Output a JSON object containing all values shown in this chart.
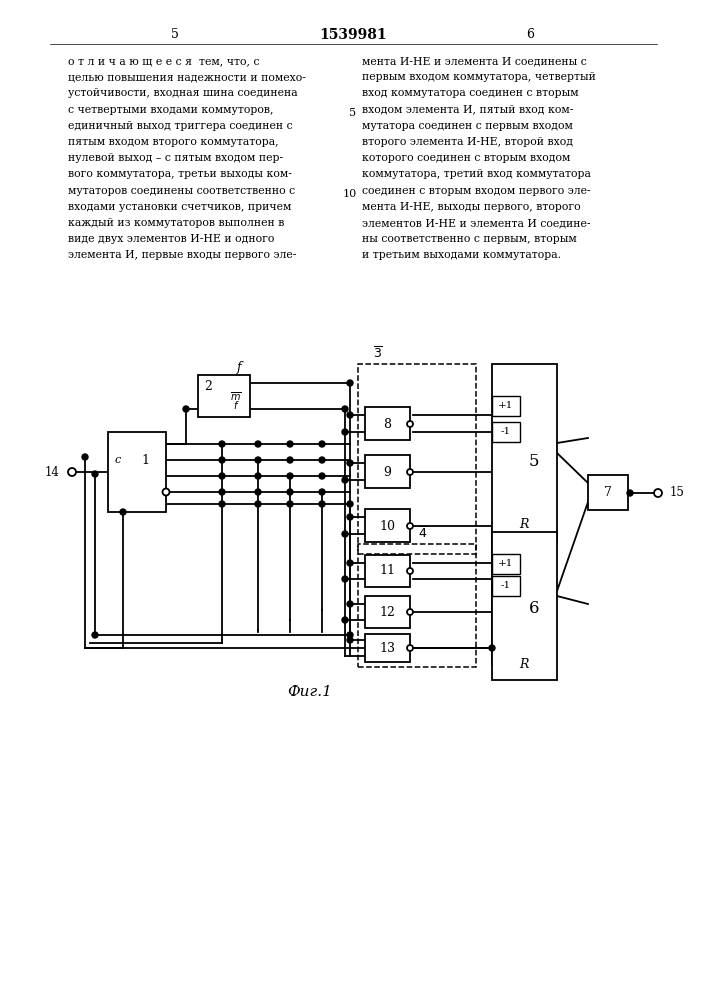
{
  "title": "1539981",
  "page_left": "5",
  "page_right": "6",
  "caption": "Фиг.1",
  "background": "#ffffff",
  "text_color": "#000000",
  "line_color": "#000000",
  "text_left": [
    "о т л и ч а ю щ е е с я  тем, что, с",
    "целью повышения надежности и помехо-",
    "устойчивости, входная шина соединена",
    "с четвертыми входами коммуторов,",
    "единичный выход триггера соединен с",
    "пятым входом второго коммутатора,",
    "нулевой выход – с пятым входом пер-",
    "вого коммутатора, третьи выходы ком-",
    "мутаторов соединены соответственно с",
    "входами установки счетчиков, причем",
    "каждый из коммутаторов выполнен в",
    "виде двух элементов И-НЕ и одного",
    "элемента И, первые входы первого эле-"
  ],
  "text_right": [
    "мента И-НЕ и элемента И соединены с",
    "первым входом коммутатора, четвертый",
    "вход коммутатора соединен с вторым",
    "входом элемента И, пятый вход ком-",
    "мутатора соединен с первым входом",
    "второго элемента И-НЕ, второй вход",
    "которого соединен с вторым входом",
    "коммутатора, третий вход коммутатора",
    "соединен с вторым входом первого эле-",
    "мента И-НЕ, выходы первого, второго",
    "элементов И-НЕ и элемента И соедине-",
    "ны соответственно с первым, вторым",
    "и третьим выходами коммутатора."
  ],
  "line_num_5_row": 4,
  "line_num_10_row": 9
}
